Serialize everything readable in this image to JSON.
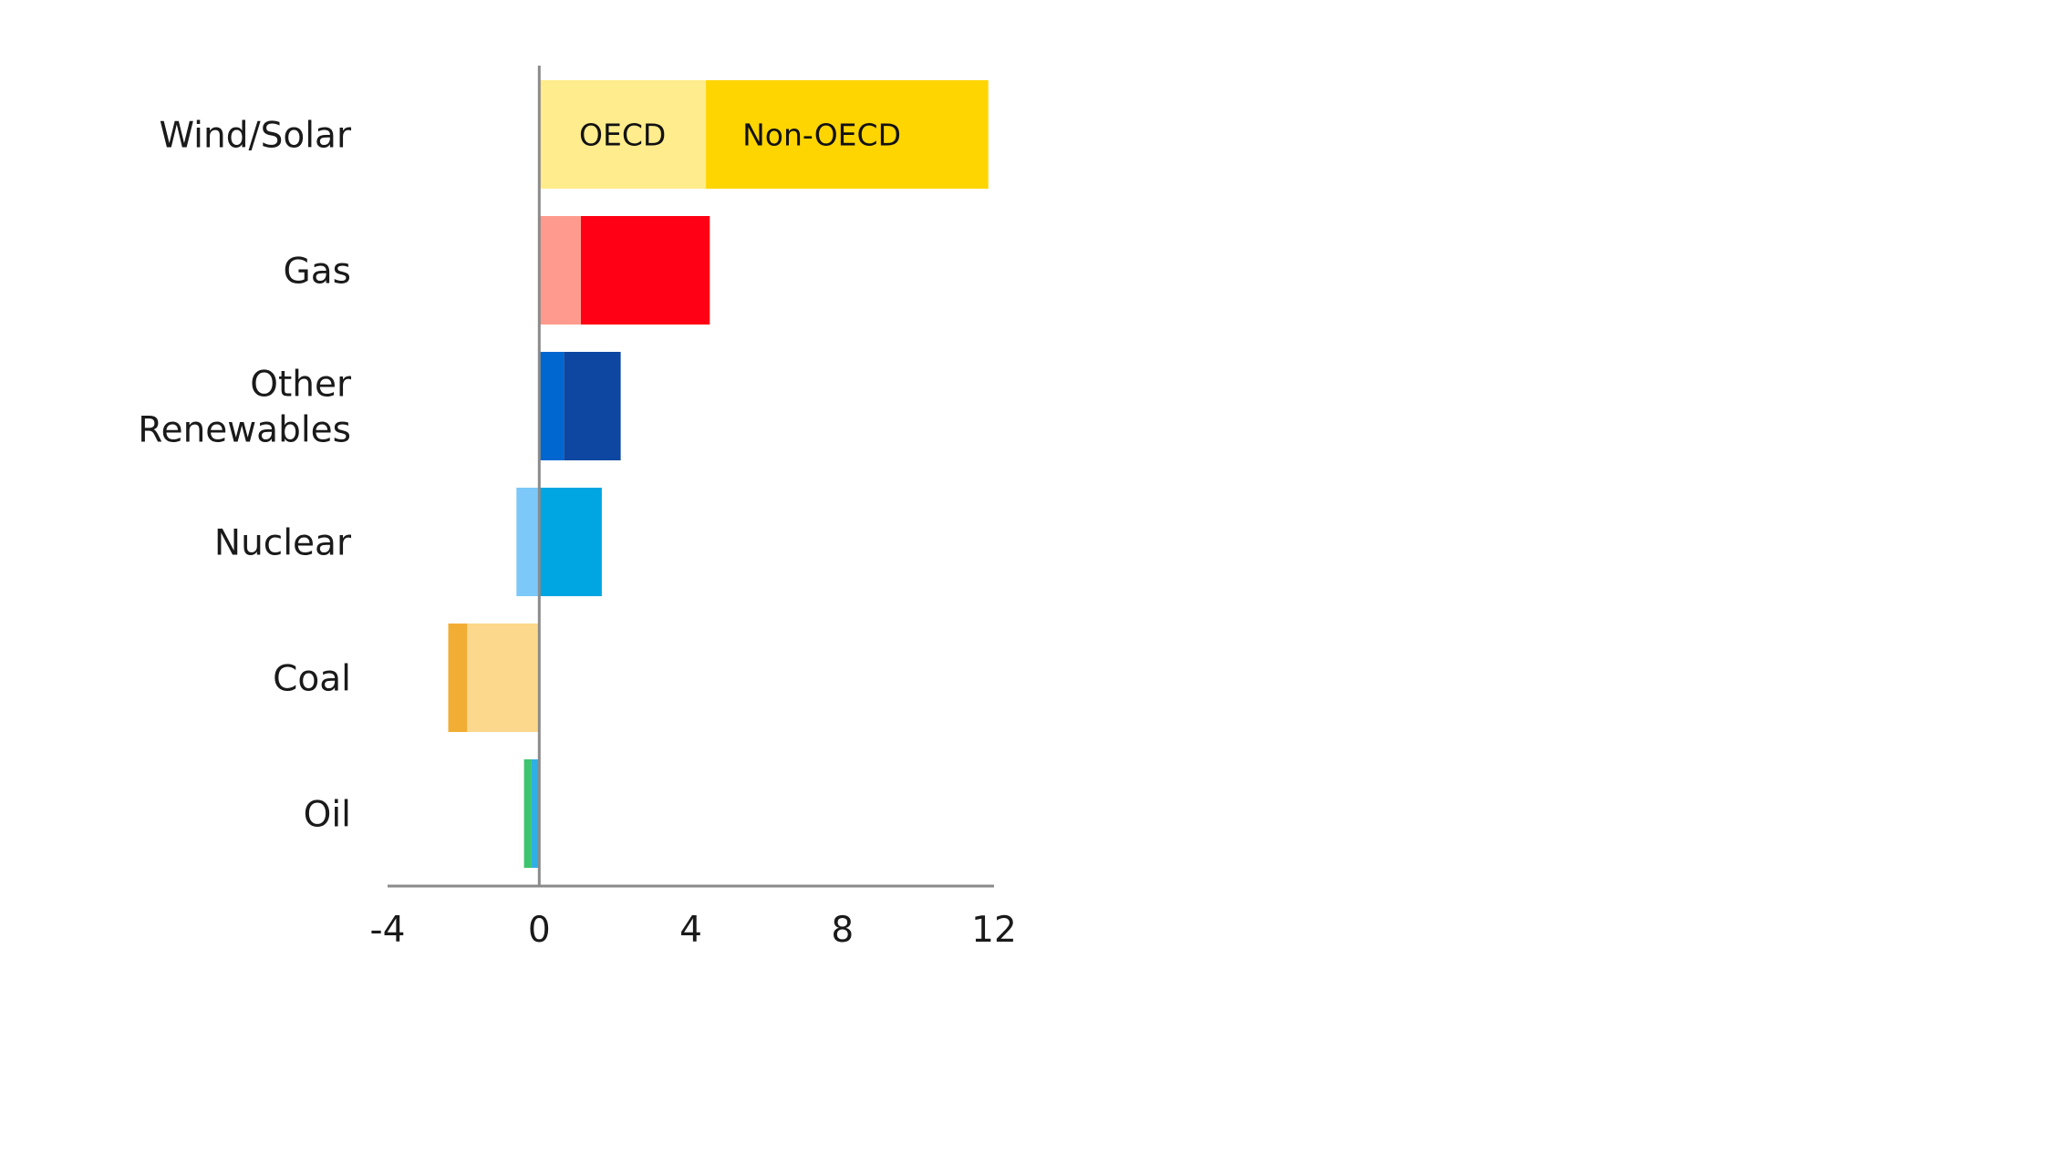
{
  "chart_data": {
    "type": "bar",
    "orientation": "horizontal",
    "stacked": true,
    "title": "",
    "xlabel": "",
    "ylabel": "",
    "xlim": [
      -4,
      12
    ],
    "x_ticks": [
      -4,
      0,
      4,
      8,
      12
    ],
    "x_tick_labels": [
      "-4",
      "0",
      "4",
      "8",
      "12"
    ],
    "grid": false,
    "categories": [
      {
        "label_lines": [
          "Wind/Solar"
        ]
      },
      {
        "label_lines": [
          "Gas"
        ]
      },
      {
        "label_lines": [
          "Other",
          "Renewables"
        ]
      },
      {
        "label_lines": [
          "Nuclear"
        ]
      },
      {
        "label_lines": [
          "Coal"
        ]
      },
      {
        "label_lines": [
          "Oil"
        ]
      }
    ],
    "series": [
      {
        "name": "OECD",
        "values": [
          4.4,
          1.1,
          0.65,
          -0.6,
          -1.9,
          -0.2
        ],
        "colors": [
          "#FFEC8C",
          "#FF9A8E",
          "#0066D0",
          "#7CC8F8",
          "#FCD88C",
          "#2FB0E4"
        ]
      },
      {
        "name": "Non-OECD",
        "values": [
          7.45,
          3.4,
          1.5,
          1.65,
          -0.5,
          -0.2
        ],
        "colors": [
          "#FFD500",
          "#FF0014",
          "#0D47A1",
          "#00A6E2",
          "#F2AE34",
          "#3CC46E"
        ]
      }
    ],
    "segment_labels": {
      "category_index": 0,
      "texts": [
        "OECD",
        "Non-OECD"
      ]
    }
  }
}
